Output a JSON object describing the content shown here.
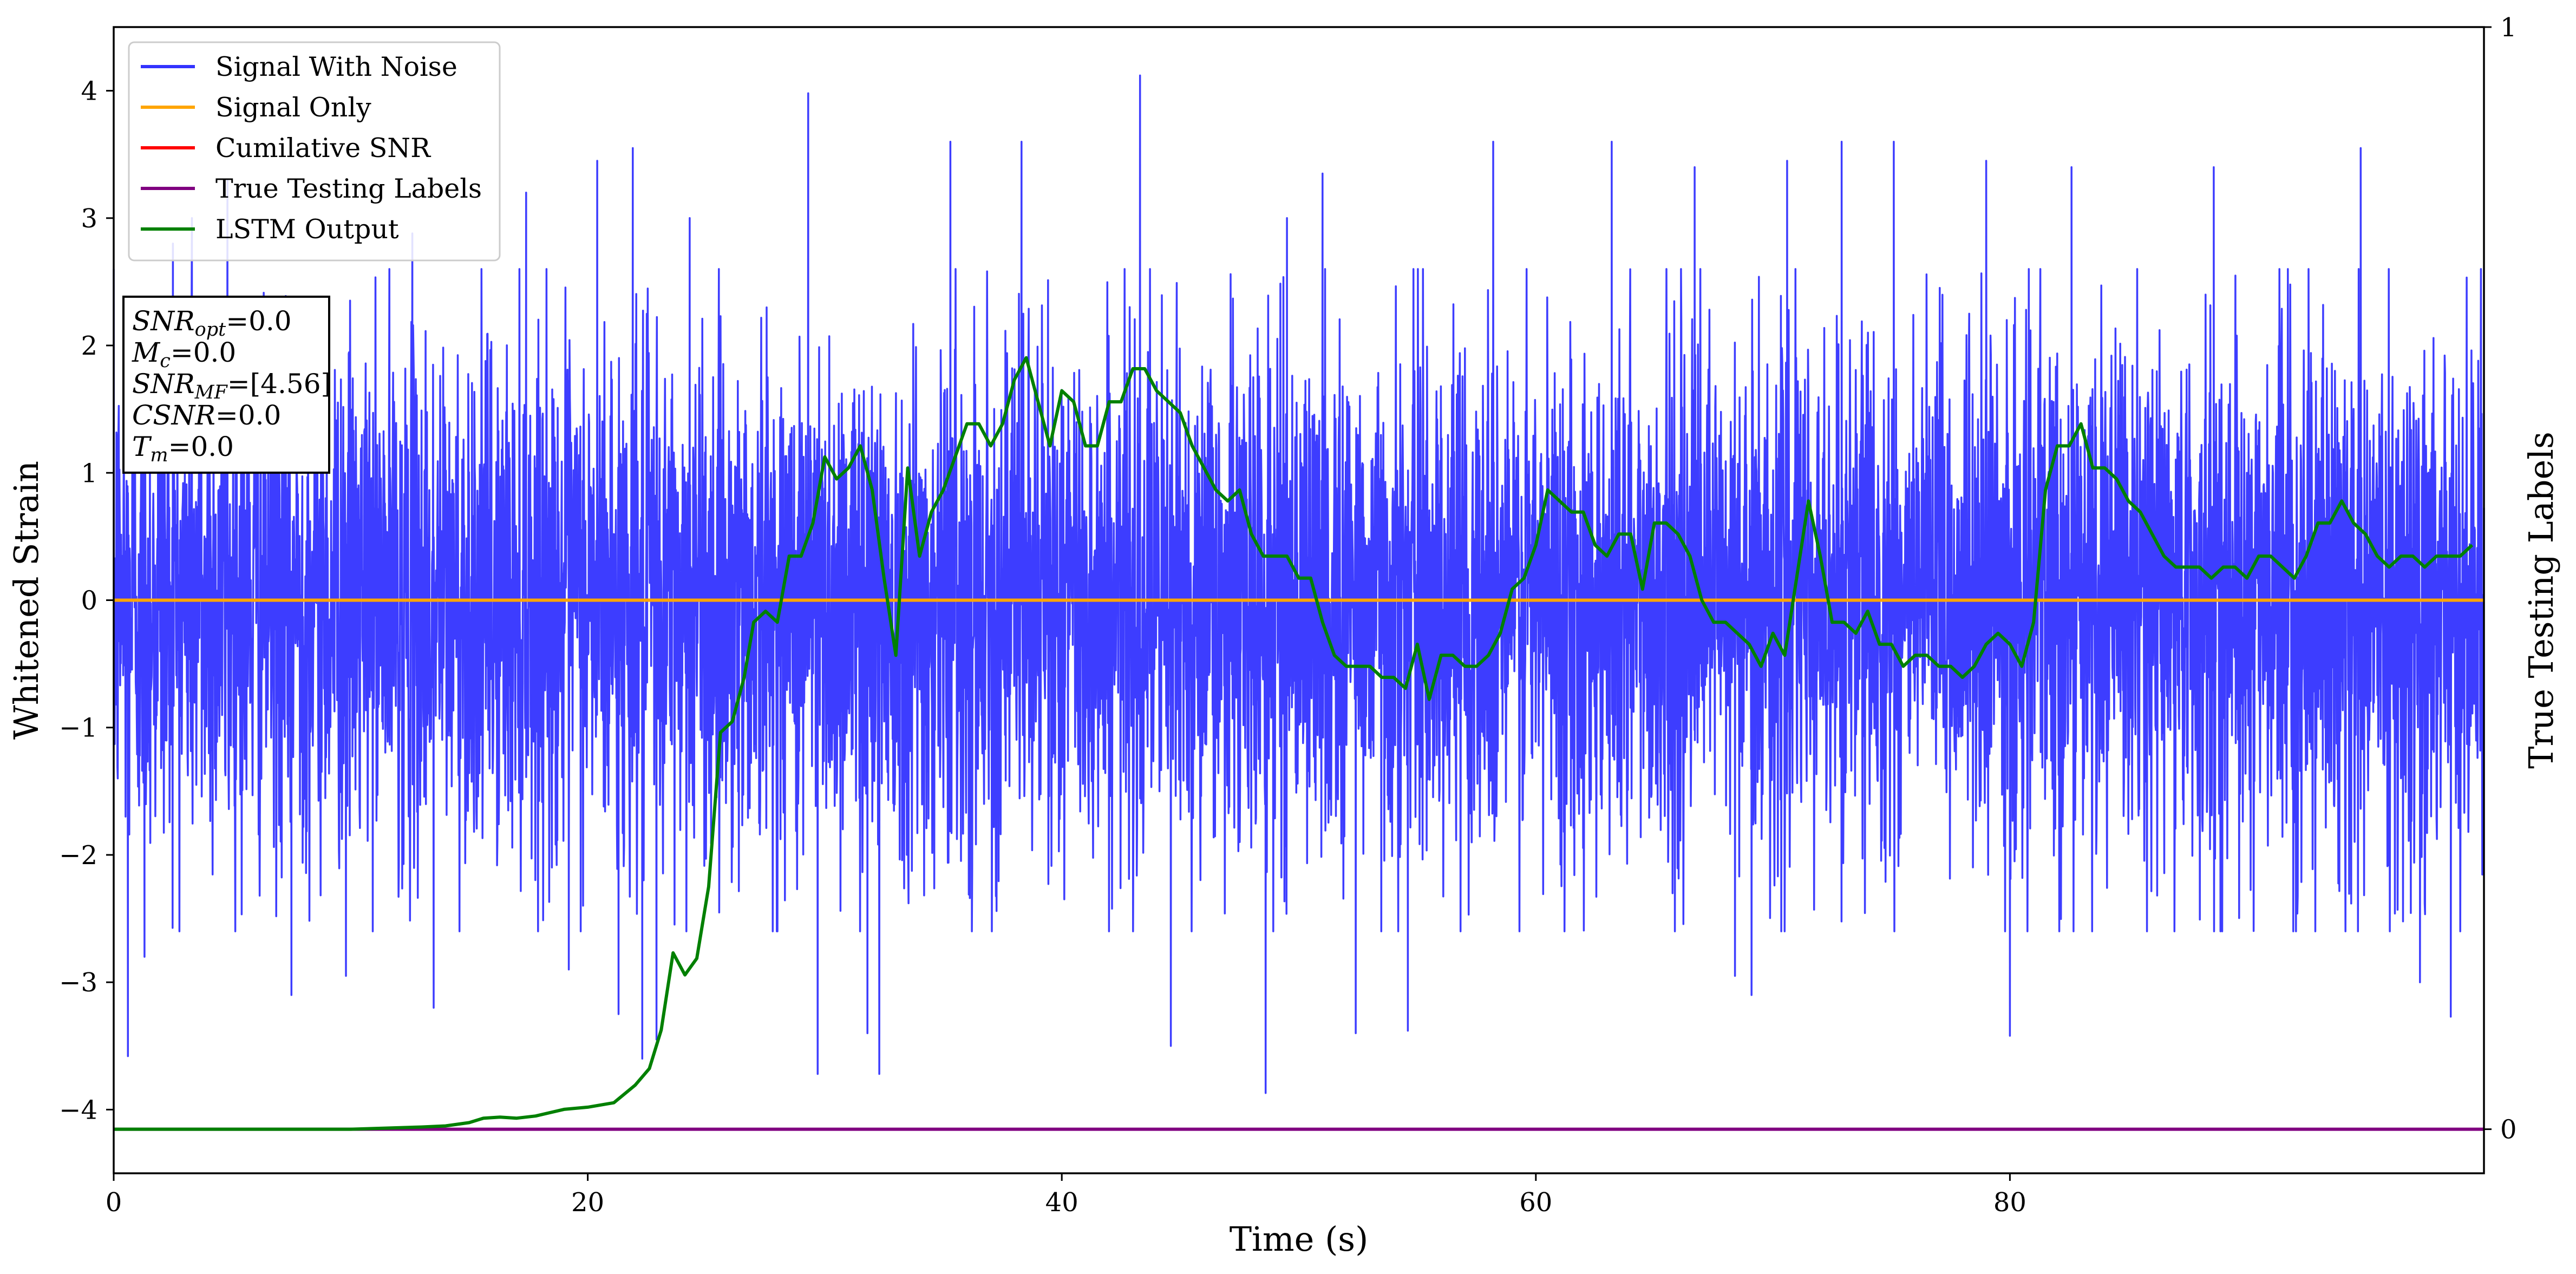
{
  "chart_data": {
    "type": "line",
    "xlabel": "Time (s)",
    "ylabel": "Whitened Strain",
    "y2label": "True Testing Labels",
    "xlim": [
      0,
      100
    ],
    "ylim": [
      -4.5,
      4.5
    ],
    "y2lim": [
      -0.04,
      1.0
    ],
    "x_ticks": [
      0,
      20,
      40,
      60,
      80
    ],
    "y_ticks": [
      -4,
      -3,
      -2,
      -1,
      0,
      1,
      2,
      3,
      4
    ],
    "y2_ticks": [
      0,
      1
    ],
    "legend_position": "upper-left",
    "series": [
      {
        "name": "Signal With Noise",
        "axis": "left",
        "color": "#3333ff",
        "style": "dense-noise",
        "noise_sigma": 1.0,
        "extremes": [
          [
            0.6,
            -3.58
          ],
          [
            1.3,
            -2.8
          ],
          [
            2.5,
            2.8
          ],
          [
            3.3,
            3.0
          ],
          [
            4.8,
            3.3
          ],
          [
            7.5,
            -3.1
          ],
          [
            9.8,
            -2.95
          ],
          [
            12.6,
            2.88
          ],
          [
            13.5,
            -3.2
          ],
          [
            17.4,
            3.2
          ],
          [
            19.2,
            -2.9
          ],
          [
            20.4,
            3.45
          ],
          [
            21.3,
            -3.25
          ],
          [
            21.9,
            3.55
          ],
          [
            22.3,
            -3.6
          ],
          [
            22.9,
            -3.45
          ],
          [
            24.3,
            3.0
          ],
          [
            29.3,
            3.98
          ],
          [
            29.7,
            -3.72
          ],
          [
            31.8,
            -3.4
          ],
          [
            32.3,
            -3.72
          ],
          [
            35.3,
            3.6
          ],
          [
            38.3,
            3.6
          ],
          [
            43.3,
            4.12
          ],
          [
            44.6,
            -3.5
          ],
          [
            48.6,
            -3.87
          ],
          [
            49.5,
            3.0
          ],
          [
            51.0,
            3.35
          ],
          [
            52.4,
            -3.4
          ],
          [
            54.6,
            -3.38
          ],
          [
            58.2,
            3.6
          ],
          [
            63.2,
            3.6
          ],
          [
            66.7,
            3.4
          ],
          [
            68.4,
            -2.95
          ],
          [
            69.1,
            -3.1
          ],
          [
            70.6,
            3.45
          ],
          [
            72.9,
            3.6
          ],
          [
            75.1,
            3.6
          ],
          [
            79.0,
            3.45
          ],
          [
            80.0,
            -3.42
          ],
          [
            82.6,
            3.4
          ],
          [
            88.6,
            3.4
          ],
          [
            94.8,
            3.55
          ],
          [
            97.3,
            -3.0
          ],
          [
            98.6,
            -3.27
          ]
        ]
      },
      {
        "name": "Signal Only",
        "axis": "left",
        "color": "#ffa500",
        "x": [
          0,
          100
        ],
        "y": [
          0,
          0
        ]
      },
      {
        "name": "Cumilative SNR",
        "axis": "left",
        "color": "#ff0000",
        "x": [],
        "y": []
      },
      {
        "name": "True Testing Labels",
        "axis": "right",
        "color": "#800080",
        "x": [
          0,
          100
        ],
        "y": [
          0,
          0
        ]
      },
      {
        "name": "LSTM Output",
        "axis": "right",
        "color": "#008000",
        "x": [
          0,
          10,
          13,
          14,
          15,
          15.6,
          16.3,
          17,
          17.8,
          19,
          20,
          21.1,
          22,
          22.6,
          23.1,
          23.6,
          24.1,
          24.6,
          25.1,
          25.6,
          26.1,
          26.6,
          27.0,
          27.5,
          28.0,
          28.5,
          29.0,
          29.5,
          30.0,
          30.5,
          31.0,
          31.5,
          32.0,
          32.5,
          33.0,
          33.5,
          34.0,
          34.5,
          35.0,
          35.5,
          36.0,
          36.5,
          37.0,
          37.5,
          38.0,
          38.5,
          39.0,
          39.5,
          40.0,
          40.5,
          41.0,
          41.5,
          42.0,
          42.5,
          43.0,
          43.5,
          44.0,
          44.5,
          45.0,
          45.5,
          46.0,
          46.5,
          47.0,
          47.5,
          48.0,
          48.5,
          49.0,
          49.5,
          50.0,
          50.5,
          51.0,
          51.5,
          52.0,
          52.5,
          53.0,
          53.5,
          54.0,
          54.5,
          55.0,
          55.5,
          56.0,
          56.5,
          57.0,
          57.5,
          58.0,
          58.5,
          59.0,
          59.5,
          60.0,
          60.5,
          61.0,
          61.5,
          62.0,
          62.5,
          63.0,
          63.5,
          64.0,
          64.5,
          65.0,
          65.5,
          66.0,
          66.5,
          67.0,
          67.5,
          68.0,
          68.5,
          69.0,
          69.5,
          70.0,
          70.5,
          71.0,
          71.5,
          72.0,
          72.5,
          73.0,
          73.5,
          74.0,
          74.5,
          75.0,
          75.5,
          76.0,
          76.5,
          77.0,
          77.5,
          78.0,
          78.5,
          79.0,
          79.5,
          80.0,
          80.5,
          81.0,
          81.5,
          82.0,
          82.5,
          83.0,
          83.5,
          84.0,
          84.5,
          85.0,
          85.5,
          86.0,
          86.5,
          87.0,
          87.5,
          88.0,
          88.5,
          89.0,
          89.5,
          90.0,
          90.5,
          91.0,
          91.5,
          92.0,
          92.5,
          93.0,
          93.5,
          94.0,
          94.5,
          95.0,
          95.5,
          96.0,
          96.5,
          97.0,
          97.5,
          98.0,
          98.5,
          99.0,
          99.5
        ],
        "y": [
          0.0,
          0.0,
          0.002,
          0.003,
          0.006,
          0.01,
          0.011,
          0.01,
          0.012,
          0.018,
          0.02,
          0.024,
          0.04,
          0.055,
          0.09,
          0.16,
          0.14,
          0.155,
          0.22,
          0.36,
          0.37,
          0.41,
          0.46,
          0.47,
          0.46,
          0.52,
          0.52,
          0.55,
          0.61,
          0.59,
          0.6,
          0.62,
          0.58,
          0.5,
          0.43,
          0.6,
          0.52,
          0.56,
          0.58,
          0.61,
          0.64,
          0.64,
          0.62,
          0.64,
          0.68,
          0.7,
          0.66,
          0.62,
          0.67,
          0.66,
          0.62,
          0.62,
          0.66,
          0.66,
          0.69,
          0.69,
          0.67,
          0.66,
          0.65,
          0.62,
          0.6,
          0.58,
          0.57,
          0.58,
          0.54,
          0.52,
          0.52,
          0.52,
          0.5,
          0.5,
          0.46,
          0.43,
          0.42,
          0.42,
          0.42,
          0.41,
          0.41,
          0.4,
          0.44,
          0.39,
          0.43,
          0.43,
          0.42,
          0.42,
          0.43,
          0.45,
          0.49,
          0.5,
          0.53,
          0.58,
          0.57,
          0.56,
          0.56,
          0.53,
          0.52,
          0.54,
          0.54,
          0.49,
          0.55,
          0.55,
          0.54,
          0.52,
          0.48,
          0.46,
          0.46,
          0.45,
          0.44,
          0.42,
          0.45,
          0.43,
          0.5,
          0.57,
          0.52,
          0.46,
          0.46,
          0.45,
          0.47,
          0.44,
          0.44,
          0.42,
          0.43,
          0.43,
          0.42,
          0.42,
          0.41,
          0.42,
          0.44,
          0.45,
          0.44,
          0.42,
          0.46,
          0.58,
          0.62,
          0.62,
          0.64,
          0.6,
          0.6,
          0.59,
          0.57,
          0.56,
          0.54,
          0.52,
          0.51,
          0.51,
          0.51,
          0.5,
          0.51,
          0.51,
          0.5,
          0.52,
          0.52,
          0.51,
          0.5,
          0.52,
          0.55,
          0.55,
          0.57,
          0.55,
          0.54,
          0.52,
          0.51,
          0.52,
          0.52,
          0.51,
          0.52,
          0.52,
          0.52,
          0.53
        ]
      }
    ],
    "annotation_box": {
      "lines": [
        {
          "base": "SNR",
          "sub": "opt",
          "value": "=0.0"
        },
        {
          "base": "M",
          "sub": "c",
          "value": "=0.0"
        },
        {
          "base": "SNR",
          "sub": "MF",
          "value": "=[4.56]"
        },
        {
          "base": "CSNR",
          "sub": "",
          "value": "=0.0"
        },
        {
          "base": "T",
          "sub": "m",
          "value": "=0.0"
        }
      ]
    }
  }
}
